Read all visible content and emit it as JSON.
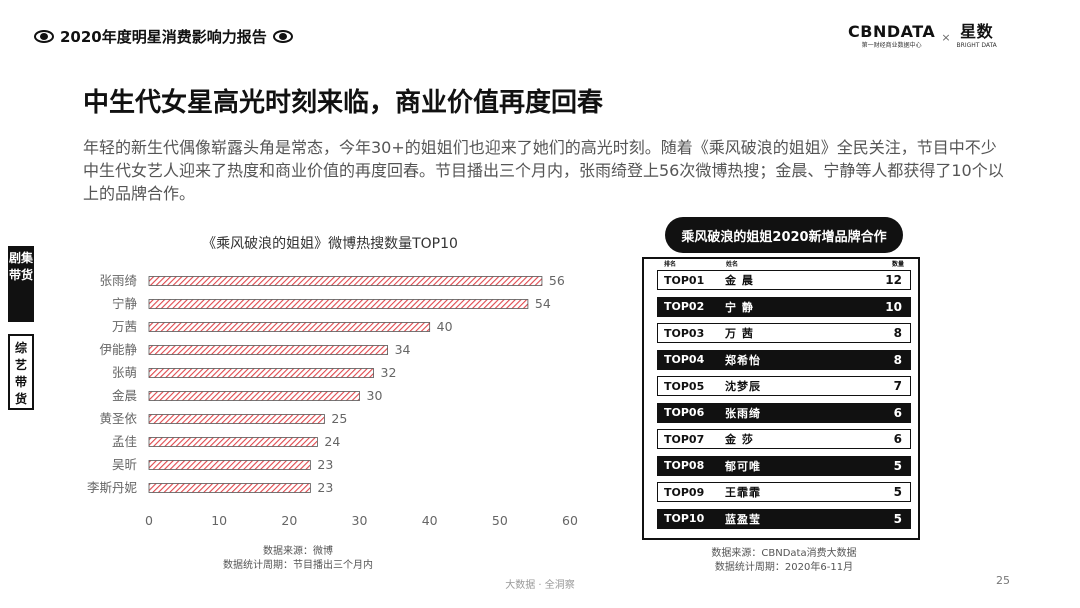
{
  "header": {
    "report_title": "2020年度明星消费影响力报告",
    "brand_left": "CBNDATA",
    "brand_left_sub": "第一财经商业数据中心",
    "brand_x": "×",
    "brand_right": "星数",
    "brand_right_sub": "BRIGHT DATA"
  },
  "headline": "中生代女星高光时刻来临，商业价值再度回春",
  "paragraph": "年轻的新生代偶像崭露头角是常态，今年30+的姐姐们也迎来了她们的高光时刻。随着《乘风破浪的姐姐》全民关注，节目中不少中生代女艺人迎来了热度和商业价值的再度回春。节目播出三个月内，张雨绮登上56次微博热搜；金晨、宁静等人都获得了10个以上的品牌合作。",
  "side_tabs": [
    "剧集带货",
    "综艺带货"
  ],
  "chart_data": {
    "type": "bar",
    "orientation": "horizontal",
    "title": "《乘风破浪的姐姐》微博热搜数量TOP10",
    "categories": [
      "张雨绮",
      "宁静",
      "万茜",
      "伊能静",
      "张萌",
      "金晨",
      "黄圣依",
      "孟佳",
      "吴昕",
      "李斯丹妮"
    ],
    "values": [
      56,
      54,
      40,
      34,
      32,
      30,
      25,
      24,
      23,
      23
    ],
    "xlim": [
      0,
      60
    ],
    "xticks": [
      0,
      10,
      20,
      30,
      40,
      50,
      60
    ],
    "bar_color": "#e0474c",
    "grid": false,
    "source_line1": "数据来源：微博",
    "source_line2": "数据统计周期：节目播出三个月内"
  },
  "table": {
    "title": "乘风破浪的姐姐2020新增品牌合作",
    "col_rank": "排名",
    "col_name": "姓名",
    "col_count": "数量",
    "rows": [
      {
        "rank": "TOP01",
        "name": "金 晨",
        "count": "12"
      },
      {
        "rank": "TOP02",
        "name": "宁 静",
        "count": "10"
      },
      {
        "rank": "TOP03",
        "name": "万 茜",
        "count": "8"
      },
      {
        "rank": "TOP04",
        "name": "郑希怡",
        "count": "8"
      },
      {
        "rank": "TOP05",
        "name": "沈梦辰",
        "count": "7"
      },
      {
        "rank": "TOP06",
        "name": "张雨绮",
        "count": "6"
      },
      {
        "rank": "TOP07",
        "name": "金 莎",
        "count": "6"
      },
      {
        "rank": "TOP08",
        "name": "郁可唯",
        "count": "5"
      },
      {
        "rank": "TOP09",
        "name": "王霏霏",
        "count": "5"
      },
      {
        "rank": "TOP10",
        "name": "蓝盈莹",
        "count": "5"
      }
    ],
    "source_line1": "数据来源：CBNData消费大数据",
    "source_line2": "数据统计周期：2020年6-11月"
  },
  "footer": {
    "center": "大数据 · 全洞察",
    "page": "25"
  }
}
